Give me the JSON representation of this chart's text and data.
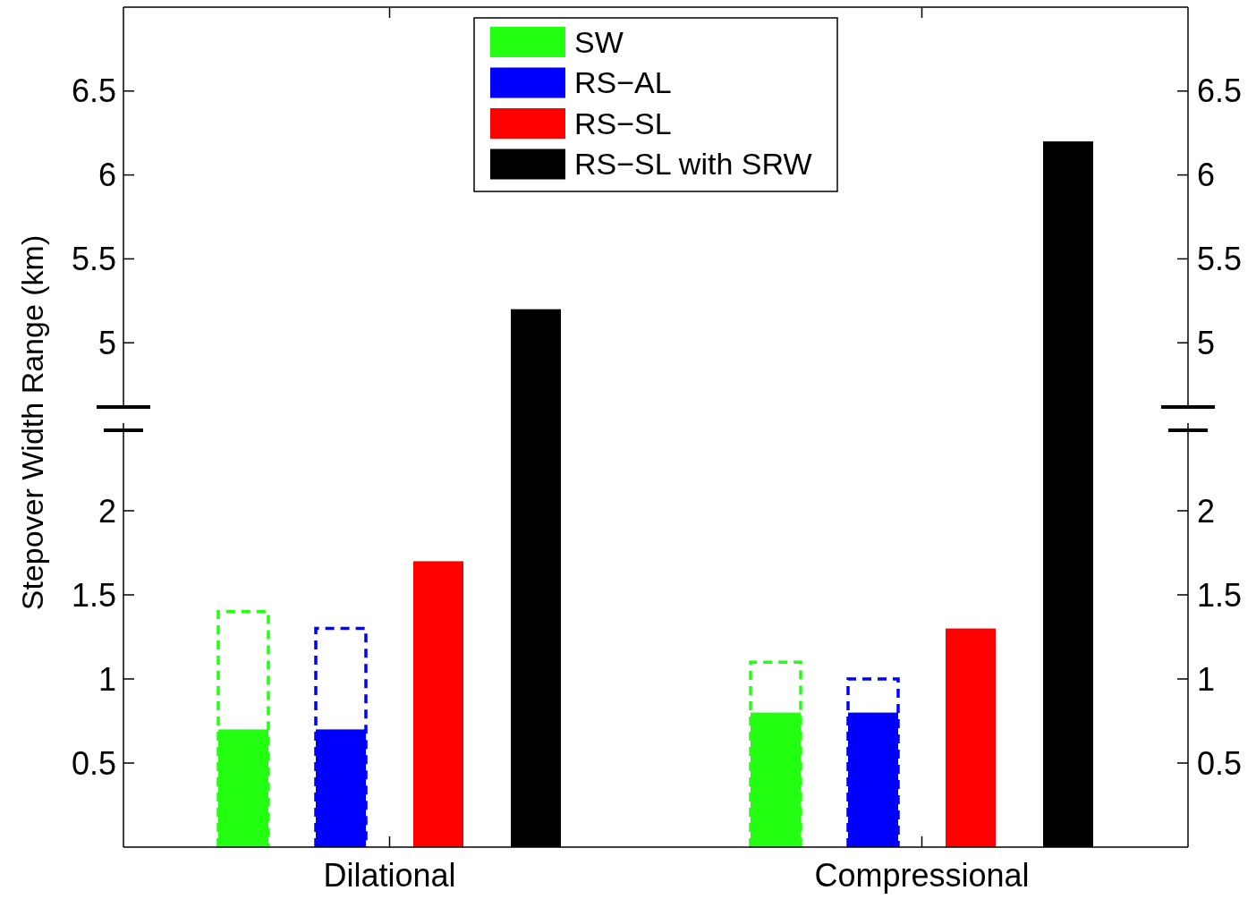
{
  "chart_data": [
    {
      "type": "bar",
      "series": [
        {
          "name": "SW",
          "color": "#22ff11",
          "values": [
            null,
            null
          ]
        },
        {
          "name": "RS−AL",
          "color": "#0000ff",
          "values": [
            null,
            null
          ]
        },
        {
          "name": "RS−SL",
          "color": "#ff0000",
          "values": [
            null,
            null
          ]
        },
        {
          "name": "RS−SL with SRW",
          "color": "#000000",
          "values": [
            5.2,
            6.2
          ]
        }
      ],
      "ylim": [
        4.5,
        7
      ],
      "yticks": [
        5,
        5.5,
        6,
        6.5
      ],
      "y2lim": [
        4.5,
        7
      ],
      "y2ticks": [
        5,
        5.5,
        6,
        6.5
      ],
      "legend": "top",
      "grid": false
    },
    {
      "type": "bar",
      "ylabel": "Stepover Width Range (km)",
      "categories": [
        "Dilational",
        "Compressional"
      ],
      "series": [
        {
          "color": "#22ff11",
          "values": [
            0.7,
            0.8
          ],
          "errors": [
            [
              0,
              1.4
            ],
            [
              0,
              1.1
            ]
          ]
        },
        {
          "color": "#0000ff",
          "values": [
            0.7,
            0.8
          ],
          "errors": [
            [
              0,
              1.3
            ],
            [
              0,
              1.0
            ]
          ]
        },
        {
          "color": "#ff0000",
          "values": [
            1.7,
            1.3
          ]
        }
      ],
      "ylim": [
        0,
        2.5
      ],
      "yticks": [
        0.5,
        1,
        1.5,
        2
      ],
      "y2lim": [
        0,
        2.5
      ],
      "y2ticks": [
        0.5,
        1,
        1.5,
        2
      ],
      "grid": false
    }
  ]
}
